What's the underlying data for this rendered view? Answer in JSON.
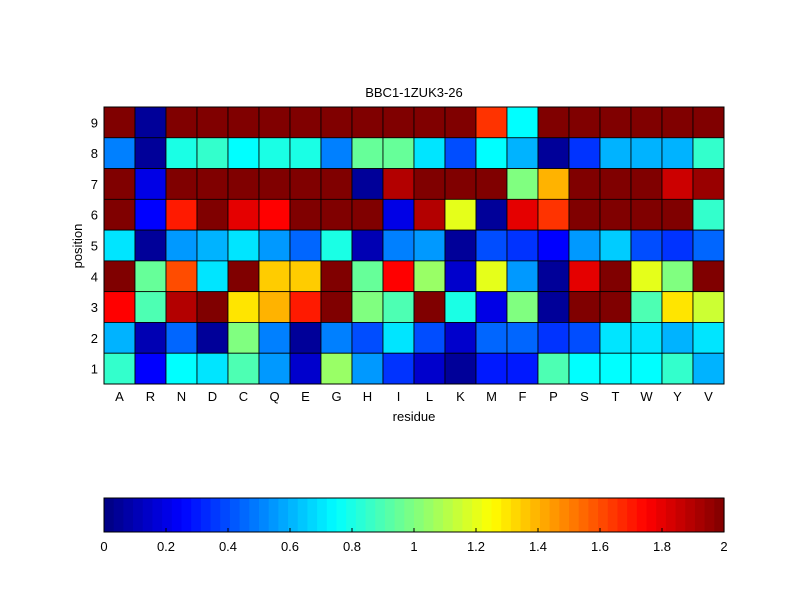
{
  "chart_data": {
    "type": "heatmap",
    "title": "BBC1-1ZUK3-26",
    "xlabel": "residue",
    "ylabel": "position",
    "x_categories": [
      "A",
      "R",
      "N",
      "D",
      "C",
      "Q",
      "E",
      "G",
      "H",
      "I",
      "L",
      "K",
      "M",
      "F",
      "P",
      "S",
      "T",
      "W",
      "Y",
      "V"
    ],
    "y_categories": [
      "9",
      "8",
      "7",
      "6",
      "5",
      "4",
      "3",
      "2",
      "1"
    ],
    "values": [
      [
        2.0,
        0.05,
        2.0,
        2.0,
        2.0,
        2.0,
        2.0,
        2.0,
        2.0,
        2.0,
        2.0,
        2.0,
        1.65,
        0.75,
        2.0,
        2.0,
        2.0,
        2.0,
        2.0,
        2.0
      ],
      [
        0.5,
        0.05,
        0.8,
        0.85,
        0.75,
        0.8,
        0.8,
        0.5,
        0.95,
        0.95,
        0.7,
        0.4,
        0.75,
        0.6,
        0.05,
        0.35,
        0.6,
        0.6,
        0.6,
        0.85
      ],
      [
        2.0,
        0.2,
        2.0,
        2.0,
        2.0,
        2.0,
        2.0,
        2.0,
        0.05,
        1.9,
        2.0,
        2.0,
        2.0,
        1.0,
        1.4,
        2.0,
        2.0,
        2.0,
        1.85,
        1.95
      ],
      [
        2.0,
        0.25,
        1.7,
        2.0,
        1.8,
        1.75,
        2.0,
        2.0,
        2.0,
        0.2,
        1.9,
        1.2,
        0.05,
        1.8,
        1.65,
        2.0,
        2.0,
        2.0,
        2.0,
        0.85
      ],
      [
        0.7,
        0.05,
        0.55,
        0.6,
        0.7,
        0.55,
        0.45,
        0.8,
        0.1,
        0.5,
        0.55,
        0.05,
        0.4,
        0.35,
        0.25,
        0.55,
        0.65,
        0.4,
        0.35,
        0.45
      ],
      [
        2.0,
        0.95,
        1.6,
        0.7,
        2.0,
        1.35,
        1.35,
        2.0,
        0.95,
        1.75,
        1.05,
        0.15,
        1.2,
        0.55,
        0.05,
        1.8,
        2.0,
        1.2,
        1.0,
        2.0
      ],
      [
        1.75,
        0.9,
        1.9,
        2.0,
        1.3,
        1.4,
        1.7,
        2.0,
        1.0,
        0.9,
        2.0,
        0.8,
        0.2,
        1.0,
        0.05,
        2.0,
        2.0,
        0.9,
        1.3,
        1.15
      ],
      [
        0.6,
        0.1,
        0.45,
        0.05,
        1.0,
        0.5,
        0.05,
        0.5,
        0.4,
        0.7,
        0.4,
        0.15,
        0.45,
        0.45,
        0.35,
        0.4,
        0.7,
        0.7,
        0.6,
        0.7
      ],
      [
        0.85,
        0.25,
        0.75,
        0.7,
        0.9,
        0.55,
        0.15,
        1.05,
        0.55,
        0.35,
        0.15,
        0.05,
        0.3,
        0.3,
        0.9,
        0.75,
        0.75,
        0.75,
        0.85,
        0.6
      ]
    ],
    "colormap": "jet",
    "colorbar": {
      "range": [
        0,
        2
      ],
      "ticks": [
        "0",
        "0.2",
        "0.4",
        "0.6",
        "0.8",
        "1",
        "1.2",
        "1.4",
        "1.6",
        "1.8",
        "2"
      ],
      "placement": "bottom"
    }
  }
}
